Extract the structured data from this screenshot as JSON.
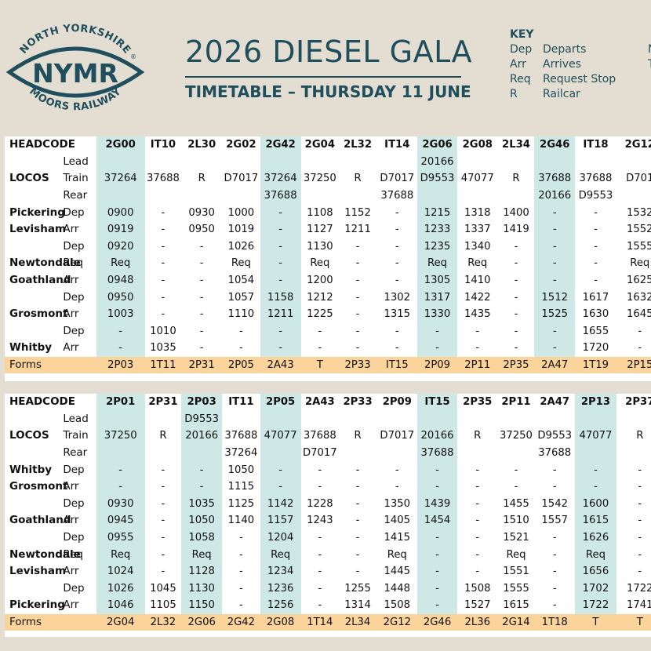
{
  "logo": {
    "top_text": "NORTH YORKSHIRE",
    "main": "NYMR",
    "reg": "®",
    "bottom_text": "MOORS RAILWAY"
  },
  "title": "2026 DIESEL GALA",
  "subtitle": "TIMETABLE – THURSDAY 11 JUNE",
  "key": {
    "title": "KEY",
    "items": [
      {
        "code": "Dep",
        "meaning": "Departs"
      },
      {
        "code": "Arr",
        "meaning": "Arrives"
      },
      {
        "code": "Req",
        "meaning": "Request Stop"
      },
      {
        "code": "R",
        "meaning": "Railcar"
      }
    ],
    "partial": [
      "N",
      "T"
    ]
  },
  "colors": {
    "background": "#e4ddd2",
    "brand": "#1f4f5c",
    "shaded_column": "#cde8e5",
    "forms_row": "#fbd49c"
  },
  "tables": [
    {
      "shaded_columns": [
        0,
        4,
        8,
        11
      ],
      "rows": [
        {
          "type": "head",
          "station": "HEADCODE",
          "event": "",
          "cells": [
            "2G00",
            "IT10",
            "2L30",
            "2G02",
            "2G42",
            "2G04",
            "2L32",
            "IT14",
            "2G06",
            "2G08",
            "2L34",
            "2G46",
            "IT18",
            "2G12"
          ]
        },
        {
          "type": "normal",
          "station": "",
          "event": "Lead",
          "cells": [
            "",
            "",
            "",
            "",
            "",
            "",
            "",
            "",
            "20166",
            "",
            "",
            "",
            "",
            ""
          ]
        },
        {
          "type": "normal",
          "station": "LOCOS",
          "event": "Train",
          "cells": [
            "37264",
            "37688",
            "R",
            "D7017",
            "37264",
            "37250",
            "R",
            "D7017",
            "D9553",
            "47077",
            "R",
            "37688",
            "37688",
            "D701"
          ]
        },
        {
          "type": "normal",
          "station": "",
          "event": "Rear",
          "cells": [
            "",
            "",
            "",
            "",
            "37688",
            "",
            "",
            "37688",
            "",
            "",
            "",
            "20166",
            "D9553",
            ""
          ]
        },
        {
          "type": "normal",
          "station": "Pickering",
          "event": "Dep",
          "cells": [
            "0900",
            "-",
            "0930",
            "1000",
            "-",
            "1108",
            "1152",
            "-",
            "1215",
            "1318",
            "1400",
            "-",
            "-",
            "1532"
          ]
        },
        {
          "type": "normal",
          "station": "Levisham",
          "event": "Arr",
          "cells": [
            "0919",
            "-",
            "0950",
            "1019",
            "-",
            "1127",
            "1211",
            "-",
            "1233",
            "1337",
            "1419",
            "-",
            "-",
            "1552"
          ]
        },
        {
          "type": "normal",
          "station": "",
          "event": "Dep",
          "cells": [
            "0920",
            "-",
            "-",
            "1026",
            "-",
            "1130",
            "-",
            "-",
            "1235",
            "1340",
            "-",
            "-",
            "-",
            "1555"
          ]
        },
        {
          "type": "normal",
          "station": "Newtondale",
          "event": "Req",
          "cells": [
            "Req",
            "-",
            "-",
            "Req",
            "-",
            "Req",
            "-",
            "-",
            "Req",
            "Req",
            "-",
            "-",
            "-",
            "Req"
          ]
        },
        {
          "type": "normal",
          "station": "Goathland",
          "event": "Arr",
          "cells": [
            "0948",
            "-",
            "-",
            "1054",
            "-",
            "1200",
            "-",
            "-",
            "1305",
            "1410",
            "-",
            "-",
            "-",
            "1625"
          ]
        },
        {
          "type": "normal",
          "station": "",
          "event": "Dep",
          "cells": [
            "0950",
            "-",
            "-",
            "1057",
            "1158",
            "1212",
            "-",
            "1302",
            "1317",
            "1422",
            "-",
            "1512",
            "1617",
            "1632"
          ]
        },
        {
          "type": "normal",
          "station": "Grosmont",
          "event": "Arr",
          "cells": [
            "1003",
            "-",
            "-",
            "1110",
            "1211",
            "1225",
            "-",
            "1315",
            "1330",
            "1435",
            "-",
            "1525",
            "1630",
            "1645"
          ]
        },
        {
          "type": "normal",
          "station": "",
          "event": "Dep",
          "cells": [
            "-",
            "1010",
            "-",
            "-",
            "-",
            "-",
            "-",
            "-",
            "-",
            "-",
            "-",
            "-",
            "1655",
            "-"
          ]
        },
        {
          "type": "normal",
          "station": "Whitby",
          "event": "Arr",
          "cells": [
            "-",
            "1035",
            "-",
            "-",
            "-",
            "-",
            "-",
            "-",
            "-",
            "-",
            "-",
            "-",
            "1720",
            "-"
          ]
        },
        {
          "type": "forms",
          "station": "Forms",
          "event": "",
          "cells": [
            "2P03",
            "1T11",
            "2P31",
            "2P05",
            "2A43",
            "T",
            "2P33",
            "IT15",
            "2P09",
            "2P11",
            "2P35",
            "2A47",
            "1T19",
            "2P15"
          ]
        }
      ]
    },
    {
      "shaded_columns": [
        0,
        2,
        4,
        8,
        12
      ],
      "rows": [
        {
          "type": "head",
          "station": "HEADCODE",
          "event": "",
          "cells": [
            "2P01",
            "2P31",
            "2P03",
            "IT11",
            "2P05",
            "2A43",
            "2P33",
            "2P09",
            "IT15",
            "2P35",
            "2P11",
            "2A47",
            "2P13",
            "2P37"
          ]
        },
        {
          "type": "normal",
          "station": "",
          "event": "Lead",
          "cells": [
            "",
            "",
            "D9553",
            "",
            "",
            "",
            "",
            "",
            "",
            "",
            "",
            "",
            "",
            ""
          ]
        },
        {
          "type": "normal",
          "station": "LOCOS",
          "event": "Train",
          "cells": [
            "37250",
            "R",
            "20166",
            "37688",
            "47077",
            "37688",
            "R",
            "D7017",
            "20166",
            "R",
            "37250",
            "D9553",
            "47077",
            "R"
          ]
        },
        {
          "type": "normal",
          "station": "",
          "event": "Rear",
          "cells": [
            "",
            "",
            "",
            "37264",
            "",
            "D7017",
            "",
            "",
            "37688",
            "",
            "",
            "37688",
            "",
            ""
          ]
        },
        {
          "type": "normal",
          "station": "Whitby",
          "event": "Dep",
          "cells": [
            "-",
            "-",
            "-",
            "1050",
            "-",
            "-",
            "-",
            "-",
            "-",
            "-",
            "-",
            "-",
            "-",
            "-"
          ]
        },
        {
          "type": "normal",
          "station": "Grosmont",
          "event": "Arr",
          "cells": [
            "-",
            "-",
            "-",
            "1115",
            "-",
            "-",
            "-",
            "-",
            "-",
            "-",
            "-",
            "-",
            "-",
            "-"
          ]
        },
        {
          "type": "normal",
          "station": "",
          "event": "Dep",
          "cells": [
            "0930",
            "-",
            "1035",
            "1125",
            "1142",
            "1228",
            "-",
            "1350",
            "1439",
            "-",
            "1455",
            "1542",
            "1600",
            "-"
          ]
        },
        {
          "type": "normal",
          "station": "Goathland",
          "event": "Arr",
          "cells": [
            "0945",
            "-",
            "1050",
            "1140",
            "1157",
            "1243",
            "-",
            "1405",
            "1454",
            "-",
            "1510",
            "1557",
            "1615",
            "-"
          ]
        },
        {
          "type": "normal",
          "station": "",
          "event": "Dep",
          "cells": [
            "0955",
            "-",
            "1058",
            "-",
            "1204",
            "-",
            "-",
            "1415",
            "-",
            "-",
            "1521",
            "-",
            "1626",
            "-"
          ]
        },
        {
          "type": "normal",
          "station": "Newtondale",
          "event": "Req",
          "cells": [
            "Req",
            "-",
            "Req",
            "-",
            "Req",
            "-",
            "-",
            "Req",
            "-",
            "-",
            "Req",
            "-",
            "Req",
            "-"
          ]
        },
        {
          "type": "normal",
          "station": "Levisham",
          "event": "Arr",
          "cells": [
            "1024",
            "-",
            "1128",
            "-",
            "1234",
            "-",
            "-",
            "1445",
            "-",
            "-",
            "1551",
            "-",
            "1656",
            "-"
          ]
        },
        {
          "type": "normal",
          "station": "",
          "event": "Dep",
          "cells": [
            "1026",
            "1045",
            "1130",
            "-",
            "1236",
            "-",
            "1255",
            "1448",
            "-",
            "1508",
            "1555",
            "-",
            "1702",
            "1722"
          ]
        },
        {
          "type": "normal",
          "station": "Pickering",
          "event": "Arr",
          "cells": [
            "1046",
            "1105",
            "1150",
            "-",
            "1256",
            "-",
            "1314",
            "1508",
            "-",
            "1527",
            "1615",
            "-",
            "1722",
            "1741"
          ]
        },
        {
          "type": "forms",
          "station": "Forms",
          "event": "",
          "cells": [
            "2G04",
            "2L32",
            "2G06",
            "2G42",
            "2G08",
            "1T14",
            "2L34",
            "2G12",
            "2G46",
            "2L36",
            "2G14",
            "1T18",
            "T",
            "T"
          ]
        }
      ]
    }
  ]
}
